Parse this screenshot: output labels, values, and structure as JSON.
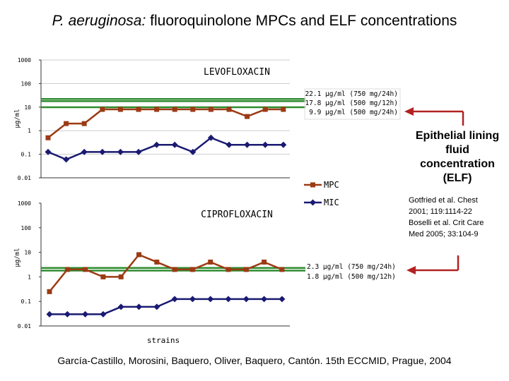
{
  "slide": {
    "title_italic": "P. aeruginosa:",
    "title_rest": " fluoroquinolone MPCs and ELF concentrations",
    "elf_label": "Epithelial lining fluid concentration (ELF)",
    "references": [
      "Gotfried et al. Chest",
      "2001; 119:1114-22",
      "Boselli et al. Crit Care",
      "Med 2005; 33:104-9"
    ],
    "citation": "García-Castillo, Morosini, Baquero, Oliver, Baquero, Cantón. 15th ECCMID, Prague, 2004"
  },
  "colors": {
    "mpc": "#9c3a14",
    "mic": "#1a1a72",
    "elf_line": "#2e8b2e",
    "arrow": "#b22222"
  },
  "legend": {
    "mpc": "MPC",
    "mic": "MIC"
  },
  "chart_data": [
    {
      "type": "line",
      "title": "LEVOFLOXACIN",
      "ylabel": "µg/ml",
      "xlabel": "",
      "yscale": "log",
      "ylim": [
        0.01,
        1000
      ],
      "yticks": [
        "1000",
        "100",
        "10",
        "1",
        "0.1",
        "0.01"
      ],
      "grid": true,
      "x": [
        1,
        2,
        3,
        4,
        5,
        6,
        7,
        8,
        9,
        10,
        11,
        12,
        13,
        14
      ],
      "series": [
        {
          "name": "MPC",
          "values": [
            0.5,
            2,
            2,
            8,
            8,
            8,
            8,
            8,
            8,
            8,
            8,
            4,
            8,
            8
          ]
        },
        {
          "name": "MIC",
          "values": [
            0.125,
            0.06,
            0.125,
            0.125,
            0.125,
            0.125,
            0.25,
            0.25,
            0.125,
            0.5,
            0.25,
            0.25,
            0.25,
            0.25
          ]
        }
      ],
      "reference_lines": [
        {
          "value": 22.1,
          "label": "22.1 µg/ml (750 mg/24h)"
        },
        {
          "value": 17.8,
          "label": "17.8 µg/ml (500 mg/12h)"
        },
        {
          "value": 9.9,
          "label": "9.9 µg/ml (500 mg/24h)"
        }
      ]
    },
    {
      "type": "line",
      "title": "CIPROFLOXACIN",
      "ylabel": "µg/ml",
      "xlabel": "strains",
      "yscale": "log",
      "ylim": [
        0.01,
        1000
      ],
      "yticks": [
        "1000",
        "100",
        "10",
        "1",
        "0.1",
        "0.01"
      ],
      "grid": false,
      "x": [
        1,
        2,
        3,
        4,
        5,
        6,
        7,
        8,
        9,
        10,
        11,
        12,
        13,
        14
      ],
      "series": [
        {
          "name": "MPC",
          "values": [
            0.25,
            2,
            2,
            1,
            1,
            8,
            4,
            2,
            2,
            4,
            2,
            2,
            4,
            2
          ]
        },
        {
          "name": "MIC",
          "values": [
            0.03,
            0.03,
            0.03,
            0.03,
            0.06,
            0.06,
            0.06,
            0.125,
            0.125,
            0.125,
            0.125,
            0.125,
            0.125,
            0.125
          ]
        }
      ],
      "reference_lines": [
        {
          "value": 2.3,
          "label": "2.3 µg/ml (750 mg/24h)"
        },
        {
          "value": 1.8,
          "label": "1.8 µg/ml (500 mg/12h)"
        }
      ]
    }
  ]
}
